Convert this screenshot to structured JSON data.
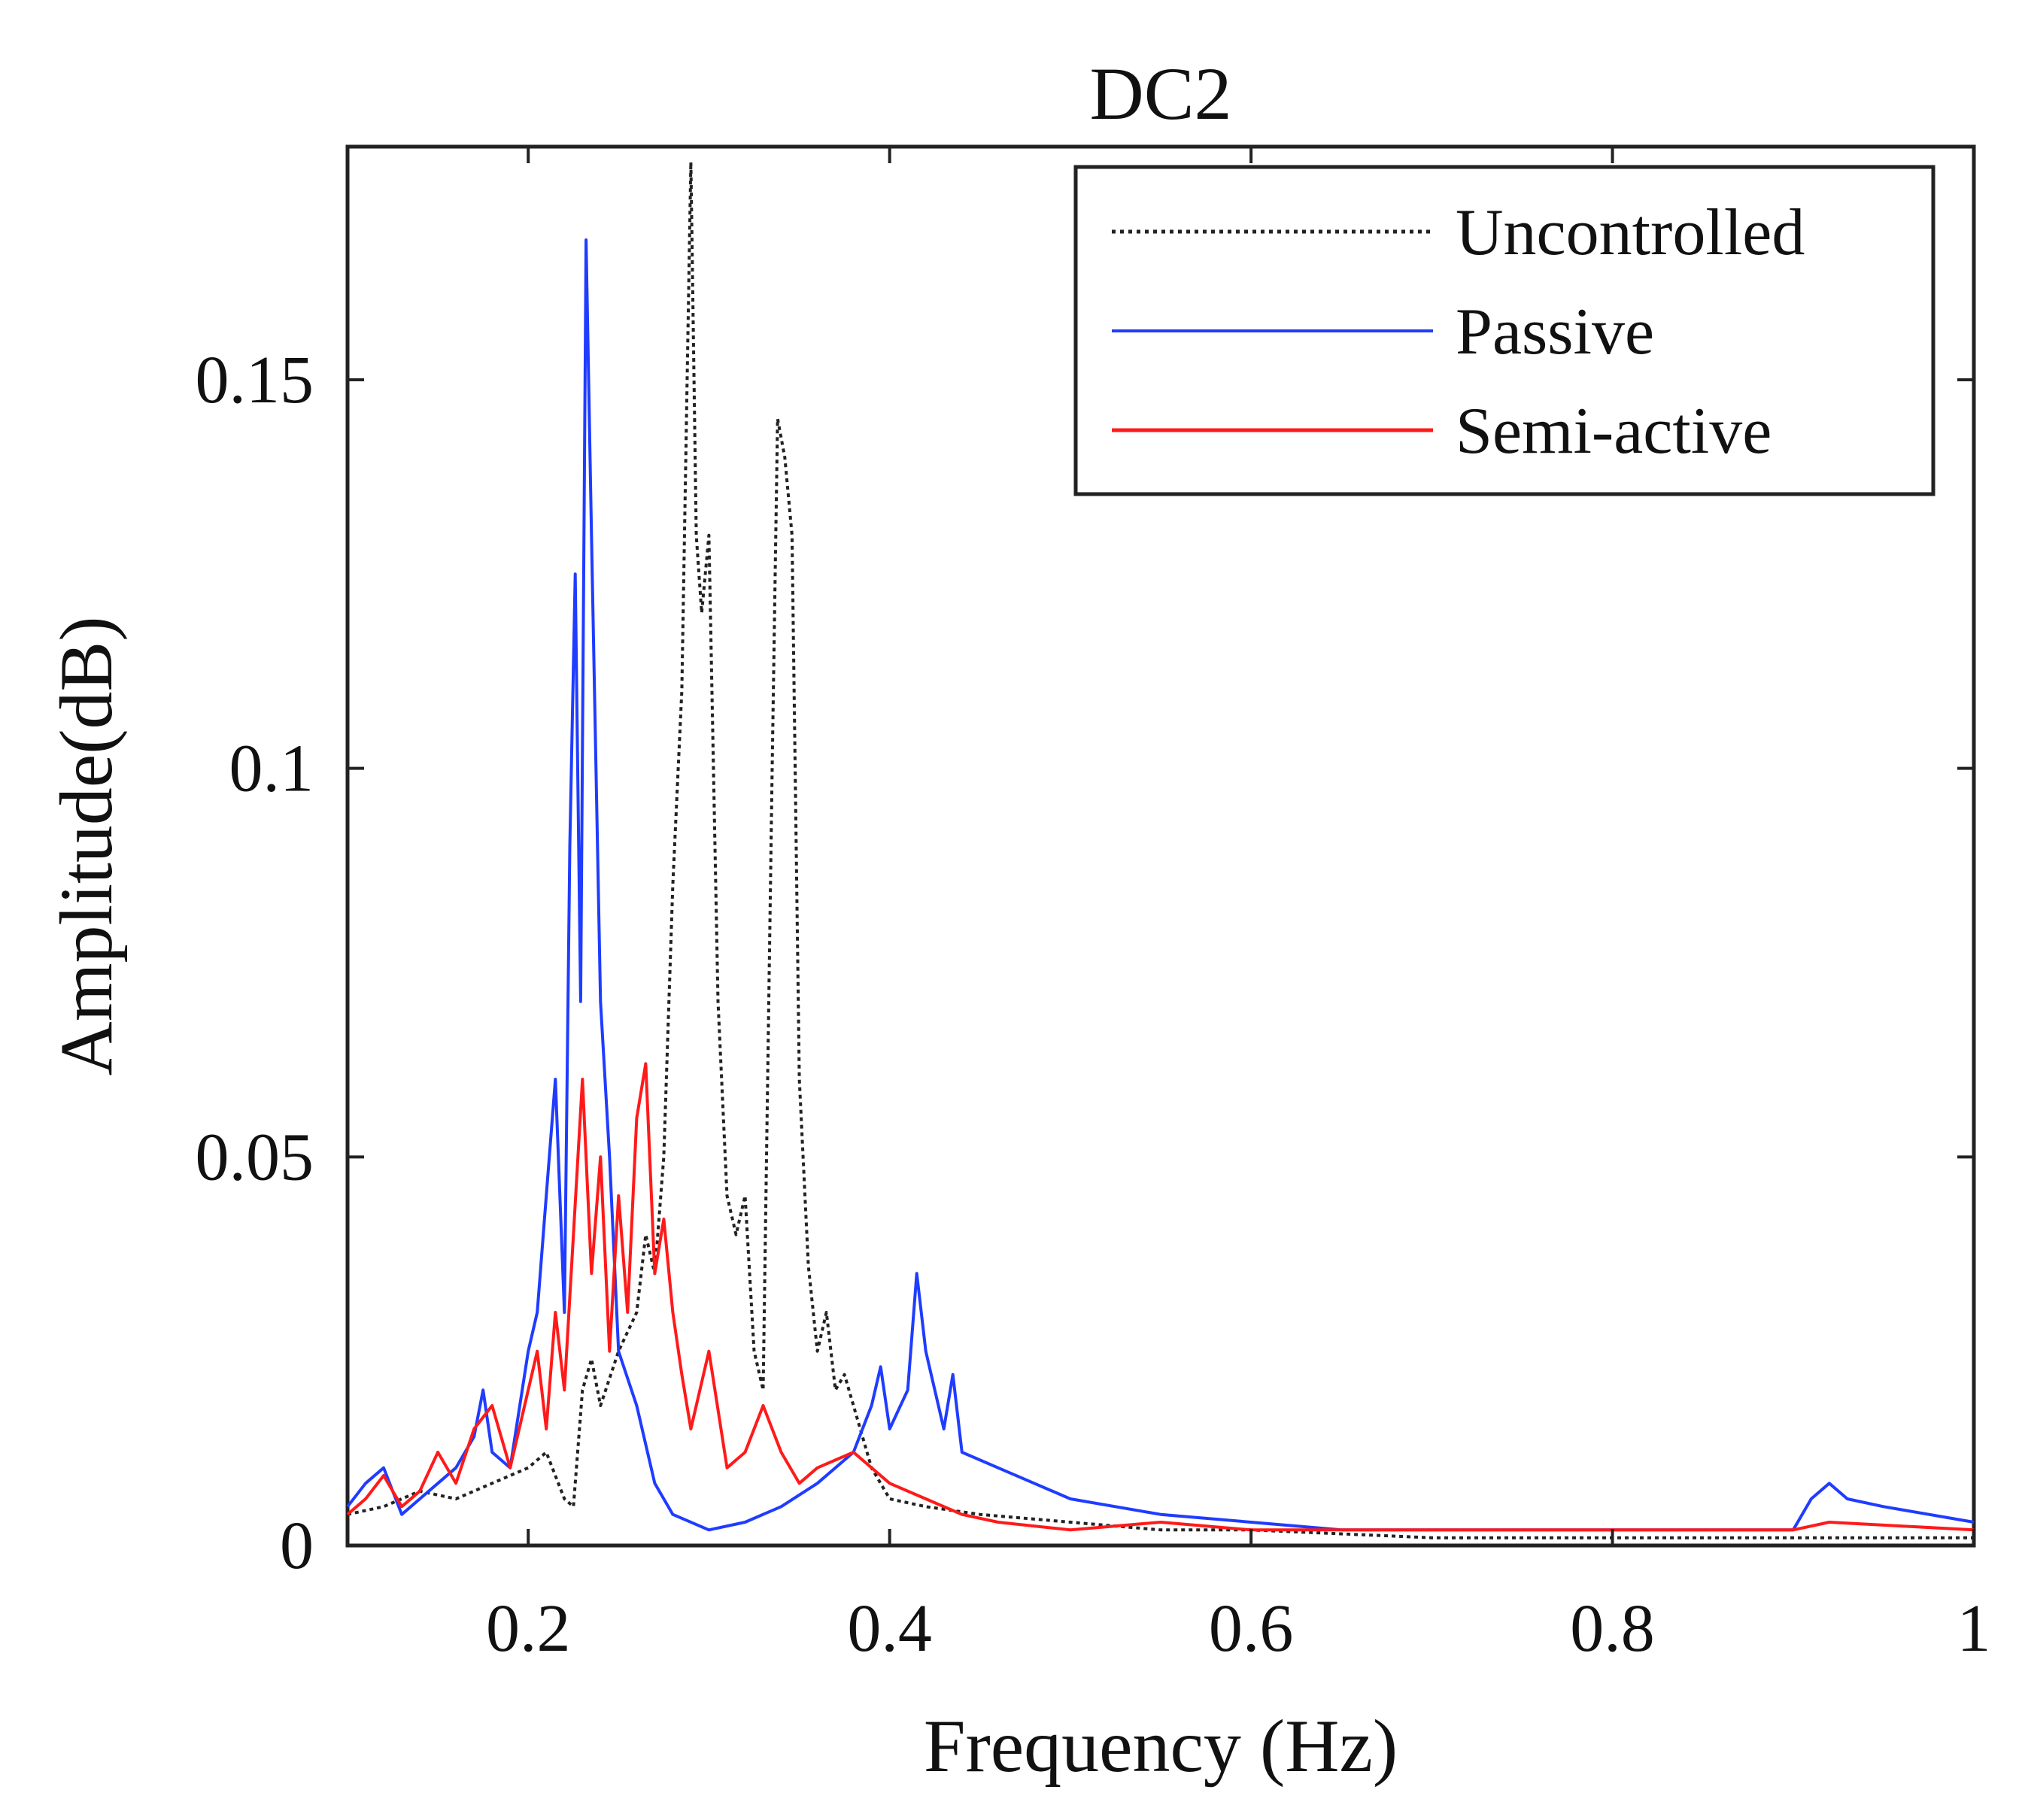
{
  "chart_data": {
    "type": "line",
    "title": "DC2",
    "xlabel": "Frequency (Hz)",
    "ylabel": "Amplitude(dB)",
    "xlim": [
      0.1,
      1.0
    ],
    "ylim": [
      0,
      0.18
    ],
    "xticks": [
      0.2,
      0.4,
      0.6,
      0.8,
      1.0
    ],
    "xtick_labels": [
      "0.2",
      "0.4",
      "0.6",
      "0.8",
      "1"
    ],
    "yticks": [
      0,
      0.05,
      0.1,
      0.15
    ],
    "ytick_labels": [
      "0",
      "0.05",
      "0.1",
      "0.15"
    ],
    "grid": false,
    "legend_position": "top-right",
    "series": [
      {
        "name": "Uncontrolled",
        "color": "#222222",
        "style": "dotted",
        "x": [
          0.1,
          0.12,
          0.14,
          0.16,
          0.18,
          0.2,
          0.21,
          0.22,
          0.225,
          0.23,
          0.235,
          0.24,
          0.25,
          0.26,
          0.265,
          0.27,
          0.275,
          0.28,
          0.285,
          0.29,
          0.293,
          0.296,
          0.3,
          0.305,
          0.31,
          0.315,
          0.32,
          0.325,
          0.33,
          0.335,
          0.338,
          0.342,
          0.346,
          0.35,
          0.355,
          0.36,
          0.365,
          0.37,
          0.375,
          0.38,
          0.39,
          0.4,
          0.42,
          0.45,
          0.5,
          0.55,
          0.6,
          0.7,
          0.8,
          0.9,
          1.0
        ],
        "values": [
          0.004,
          0.005,
          0.007,
          0.006,
          0.008,
          0.01,
          0.012,
          0.006,
          0.005,
          0.02,
          0.024,
          0.018,
          0.025,
          0.03,
          0.04,
          0.035,
          0.05,
          0.085,
          0.11,
          0.178,
          0.13,
          0.12,
          0.13,
          0.07,
          0.045,
          0.04,
          0.045,
          0.025,
          0.02,
          0.1,
          0.145,
          0.14,
          0.13,
          0.06,
          0.036,
          0.025,
          0.03,
          0.02,
          0.022,
          0.018,
          0.01,
          0.006,
          0.005,
          0.004,
          0.003,
          0.002,
          0.002,
          0.001,
          0.001,
          0.001,
          0.001
        ]
      },
      {
        "name": "Passive",
        "color": "#1f3cff",
        "style": "solid",
        "x": [
          0.1,
          0.11,
          0.12,
          0.13,
          0.14,
          0.15,
          0.16,
          0.17,
          0.175,
          0.18,
          0.19,
          0.2,
          0.205,
          0.21,
          0.215,
          0.22,
          0.223,
          0.226,
          0.229,
          0.232,
          0.235,
          0.24,
          0.245,
          0.25,
          0.26,
          0.27,
          0.28,
          0.3,
          0.32,
          0.34,
          0.36,
          0.38,
          0.39,
          0.395,
          0.4,
          0.41,
          0.415,
          0.42,
          0.43,
          0.435,
          0.44,
          0.46,
          0.48,
          0.5,
          0.55,
          0.6,
          0.65,
          0.7,
          0.75,
          0.8,
          0.85,
          0.9,
          0.91,
          0.92,
          0.93,
          0.95,
          1.0
        ],
        "values": [
          0.005,
          0.008,
          0.01,
          0.004,
          0.006,
          0.008,
          0.01,
          0.014,
          0.02,
          0.012,
          0.01,
          0.025,
          0.03,
          0.045,
          0.06,
          0.03,
          0.09,
          0.125,
          0.07,
          0.168,
          0.13,
          0.07,
          0.05,
          0.025,
          0.018,
          0.008,
          0.004,
          0.002,
          0.003,
          0.005,
          0.008,
          0.012,
          0.018,
          0.023,
          0.015,
          0.02,
          0.035,
          0.025,
          0.015,
          0.022,
          0.012,
          0.01,
          0.008,
          0.006,
          0.004,
          0.003,
          0.002,
          0.002,
          0.002,
          0.002,
          0.002,
          0.002,
          0.006,
          0.008,
          0.006,
          0.005,
          0.003
        ]
      },
      {
        "name": "Semi-active",
        "color": "#ff1a1a",
        "style": "solid",
        "x": [
          0.1,
          0.11,
          0.12,
          0.13,
          0.14,
          0.15,
          0.16,
          0.17,
          0.18,
          0.19,
          0.2,
          0.205,
          0.21,
          0.215,
          0.22,
          0.225,
          0.23,
          0.235,
          0.24,
          0.245,
          0.25,
          0.255,
          0.26,
          0.265,
          0.27,
          0.275,
          0.28,
          0.285,
          0.29,
          0.3,
          0.31,
          0.32,
          0.33,
          0.34,
          0.35,
          0.36,
          0.38,
          0.4,
          0.42,
          0.44,
          0.46,
          0.5,
          0.55,
          0.6,
          0.7,
          0.8,
          0.9,
          0.92,
          1.0
        ],
        "values": [
          0.004,
          0.006,
          0.009,
          0.005,
          0.007,
          0.012,
          0.008,
          0.015,
          0.018,
          0.01,
          0.02,
          0.025,
          0.015,
          0.03,
          0.02,
          0.04,
          0.06,
          0.035,
          0.05,
          0.025,
          0.045,
          0.03,
          0.055,
          0.062,
          0.035,
          0.042,
          0.03,
          0.022,
          0.015,
          0.025,
          0.01,
          0.012,
          0.018,
          0.012,
          0.008,
          0.01,
          0.012,
          0.008,
          0.006,
          0.004,
          0.003,
          0.002,
          0.003,
          0.002,
          0.002,
          0.002,
          0.002,
          0.003,
          0.002
        ]
      }
    ]
  }
}
